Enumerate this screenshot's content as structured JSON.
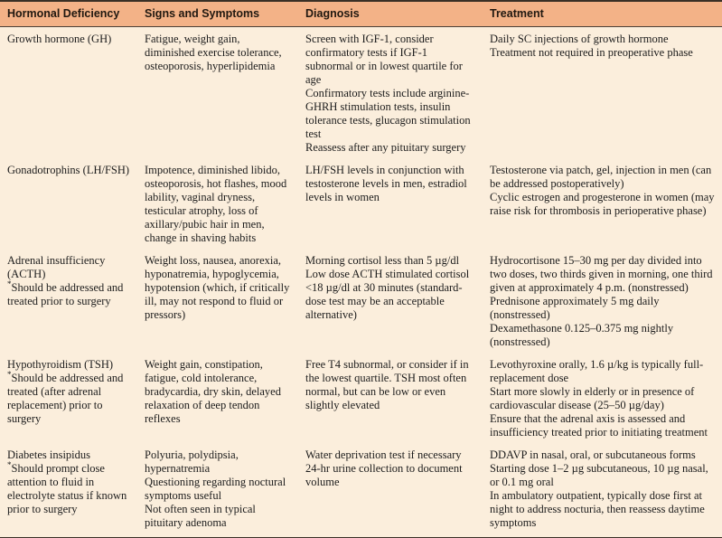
{
  "colors": {
    "header_bg": "#f3b287",
    "body_bg": "#fbeedc",
    "rule": "#3a3026",
    "text": "#1c1c1c"
  },
  "table": {
    "columns": [
      "Hormonal Deficiency",
      "Signs and Symptoms",
      "Diagnosis",
      "Treatment"
    ],
    "rows": [
      {
        "deficiency": "Growth hormone (GH)",
        "note_marker": "",
        "note": "",
        "signs": [
          "Fatigue, weight gain, diminished exercise tolerance, osteoporosis, hyperlipidemia"
        ],
        "diagnosis": [
          "Screen with IGF-1, consider confirmatory tests if IGF-1 subnormal or in lowest quartile for age",
          "Confirmatory tests include arginine-GHRH stimulation tests, insulin tolerance tests, glucagon stimulation test",
          "Reassess after any pituitary surgery"
        ],
        "treatment": [
          "Daily SC injections of growth hormone",
          "Treatment not required in preoperative phase"
        ]
      },
      {
        "deficiency": "Gonadotrophins (LH/FSH)",
        "note_marker": "",
        "note": "",
        "signs": [
          "Impotence, diminished libido, osteoporosis, hot flashes, mood lability, vaginal dryness, testicular atrophy, loss of axillary/pubic hair in men, change in shaving habits"
        ],
        "diagnosis": [
          "LH/FSH levels in conjunction with testosterone levels in men, estradiol levels in women"
        ],
        "treatment": [
          "Testosterone via patch, gel, injection in men (can be addressed postoperatively)",
          "Cyclic estrogen and progesterone in women (may raise risk for thrombosis in perioperative phase)"
        ]
      },
      {
        "deficiency": "Adrenal insufficiency (ACTH)",
        "note_marker": "*",
        "note": "Should be addressed and treated prior to surgery",
        "signs": [
          "Weight loss, nausea, anorexia, hyponatremia, hypoglycemia, hypotension (which, if critically ill, may not respond to fluid or pressors)"
        ],
        "diagnosis": [
          "Morning cortisol less than 5 µg/dl",
          "Low dose ACTH stimulated cortisol <18 µg/dl at 30 minutes (standard-dose test may be an acceptable alternative)"
        ],
        "treatment": [
          "Hydrocortisone 15–30 mg per day divided into two doses, two thirds given in morning, one third given at approximately 4 p.m. (nonstressed)",
          "Prednisone approximately 5 mg daily (nonstressed)",
          "Dexamethasone 0.125–0.375 mg nightly (nonstressed)"
        ]
      },
      {
        "deficiency": "Hypothyroidism (TSH)",
        "note_marker": "*",
        "note": "Should be addressed and treated (after adrenal replacement) prior to surgery",
        "signs": [
          "Weight gain, constipation, fatigue, cold intolerance, bradycardia, dry skin, delayed relaxation of deep tendon reflexes"
        ],
        "diagnosis": [
          "Free T4 subnormal, or consider if in the lowest quartile. TSH most often normal, but can be low or even slightly elevated"
        ],
        "treatment": [
          "Levothyroxine orally, 1.6 µ/kg is typically full-replacement dose",
          "Start more slowly in elderly or in presence of cardiovascular disease (25–50 µg/day)",
          "Ensure that the adrenal axis is assessed and insufficiency treated prior to initiating treatment"
        ]
      },
      {
        "deficiency": "Diabetes insipidus",
        "note_marker": "*",
        "note": "Should prompt close attention to fluid in electrolyte status if known prior to surgery",
        "signs": [
          "Polyuria, polydipsia, hypernatremia",
          "Questioning regarding noctural symptoms useful",
          "Not often seen in typical pituitary adenoma"
        ],
        "diagnosis": [
          "Water deprivation test if necessary",
          "24-hr urine collection to document volume"
        ],
        "treatment": [
          "DDAVP in nasal, oral, or subcutaneous forms",
          "Starting dose 1–2 µg subcutaneous, 10 µg nasal, or 0.1 mg oral",
          "In ambulatory outpatient, typically dose first at night to address nocturia, then reassess daytime symptoms"
        ]
      }
    ]
  }
}
